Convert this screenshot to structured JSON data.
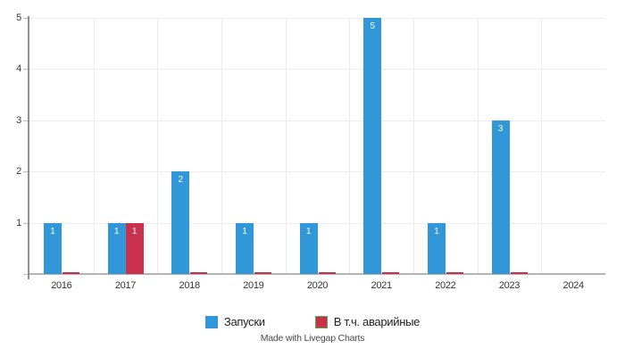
{
  "chart_data": {
    "type": "bar",
    "title": "",
    "xlabel": "",
    "ylabel": "",
    "categories": [
      "2016",
      "2017",
      "2018",
      "2019",
      "2020",
      "2021",
      "2022",
      "2023",
      "2024"
    ],
    "series": [
      {
        "name": "Запуски",
        "color": "#3297d8",
        "values": [
          1,
          1,
          2,
          1,
          1,
          5,
          1,
          3,
          0
        ]
      },
      {
        "name": "В т.ч. аварийные",
        "color": "#c9314d",
        "swatch_border": "#4caf50",
        "values": [
          0,
          1,
          0,
          0,
          0,
          0,
          0,
          0,
          0
        ]
      }
    ],
    "ylim": [
      0,
      5
    ],
    "yticks": [
      0,
      1,
      2,
      3,
      4,
      5
    ],
    "grid": true,
    "show_values": true,
    "legend_position": "bottom",
    "footer": "Made with Livegap Charts"
  }
}
